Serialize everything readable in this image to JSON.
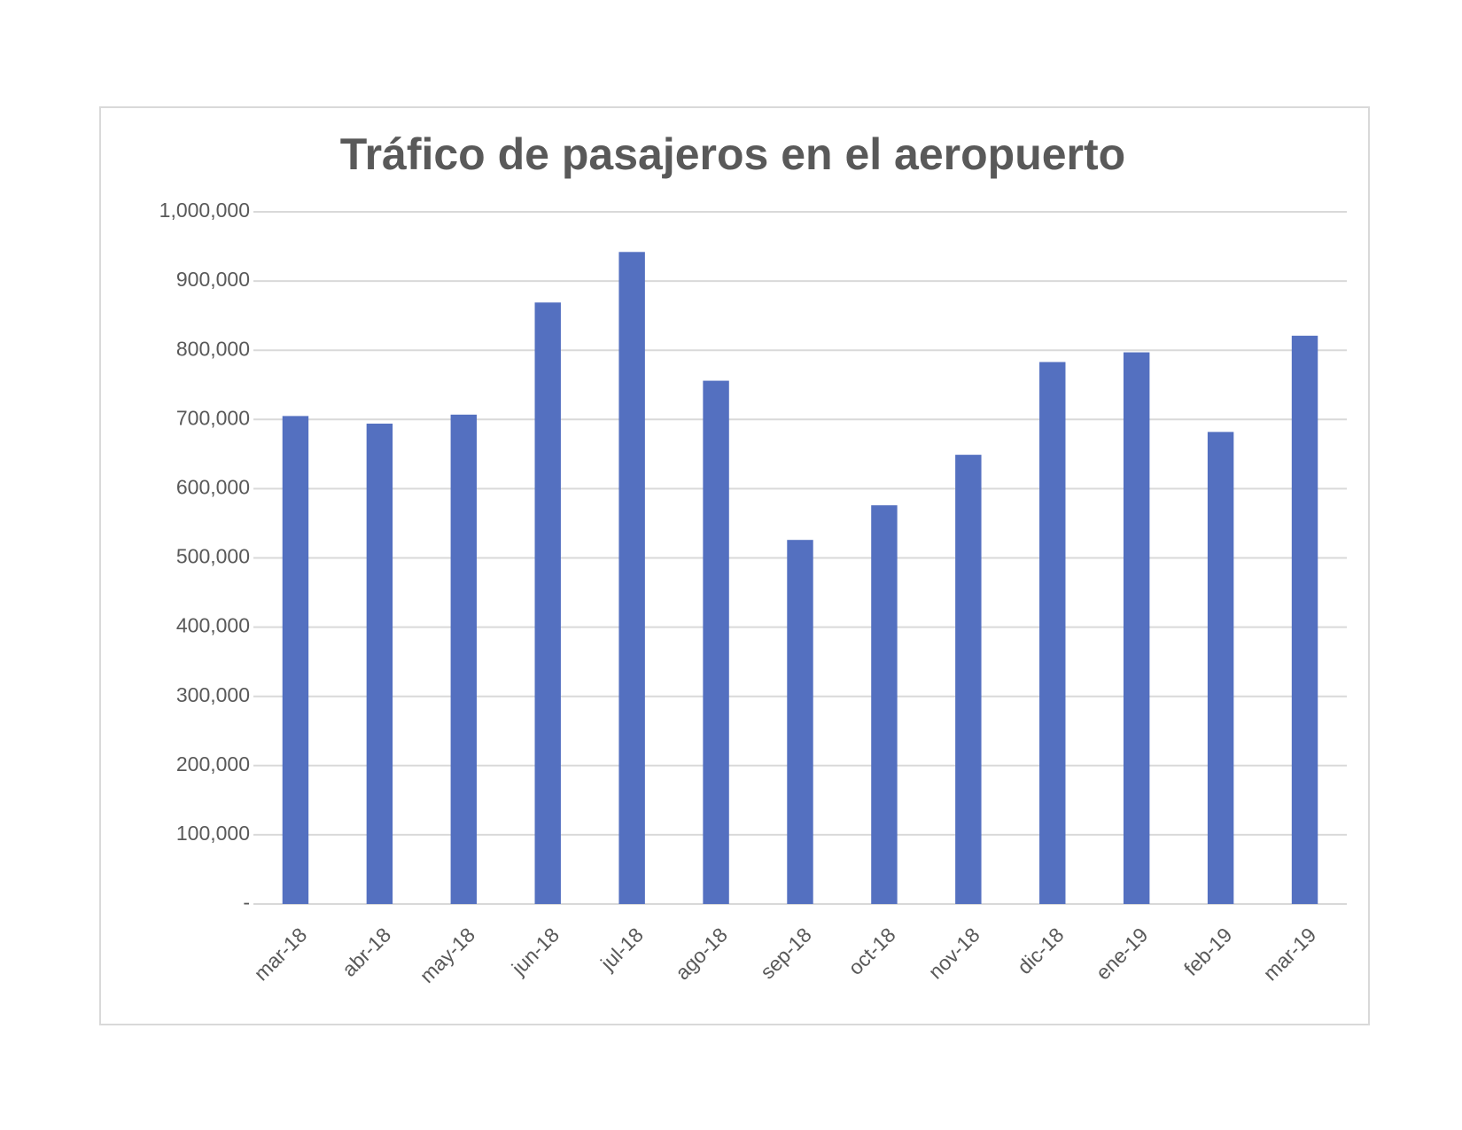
{
  "chart_data": {
    "type": "bar",
    "title": "Tráfico de pasajeros en el aeropuerto",
    "categories": [
      "mar-18",
      "abr-18",
      "may-18",
      "jun-18",
      "jul-18",
      "ago-18",
      "sep-18",
      "oct-18",
      "nov-18",
      "dic-18",
      "ene-19",
      "feb-19",
      "mar-19"
    ],
    "values": [
      705000,
      694000,
      707000,
      869000,
      942000,
      756000,
      526000,
      576000,
      649000,
      783000,
      797000,
      682000,
      821000
    ],
    "color": "#5470c0",
    "ylim": [
      0,
      1000000
    ],
    "yticks": [
      {
        "value": 0,
        "label": "-"
      },
      {
        "value": 100000,
        "label": "100,000"
      },
      {
        "value": 200000,
        "label": "200,000"
      },
      {
        "value": 300000,
        "label": "300,000"
      },
      {
        "value": 400000,
        "label": "400,000"
      },
      {
        "value": 500000,
        "label": "500,000"
      },
      {
        "value": 600000,
        "label": "600,000"
      },
      {
        "value": 700000,
        "label": "700,000"
      },
      {
        "value": 800000,
        "label": "800,000"
      },
      {
        "value": 900000,
        "label": "900,000"
      },
      {
        "value": 1000000,
        "label": "1,000,000"
      }
    ],
    "grid": true
  }
}
